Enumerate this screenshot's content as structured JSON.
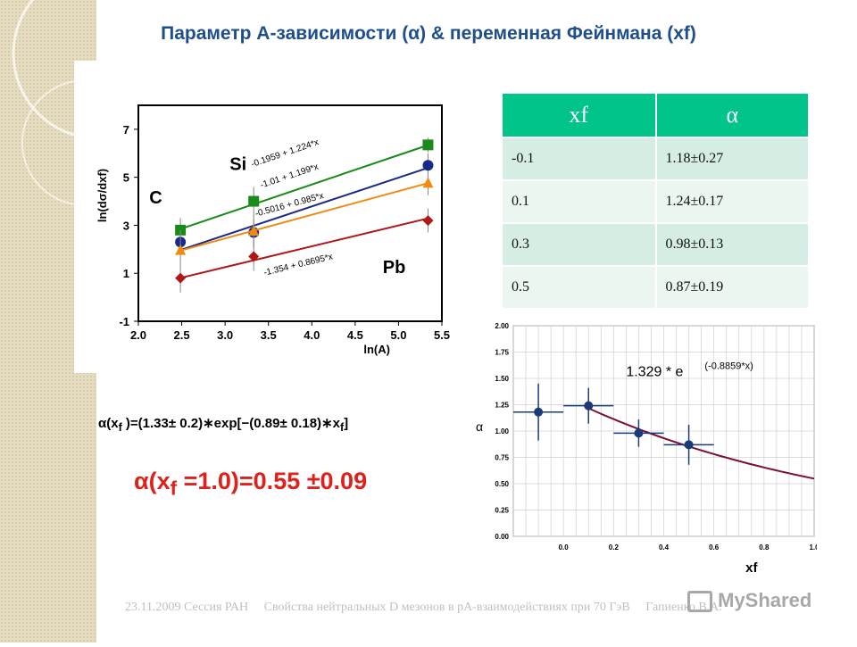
{
  "slide": {
    "title": "Параметр А-зависимости (α) & переменная Фейнмана (xf)"
  },
  "table": {
    "headers": [
      "xf",
      "α"
    ],
    "rows": [
      [
        "-0.1",
        "1.18±0.27"
      ],
      [
        "0.1",
        "1.24±0.17"
      ],
      [
        "0.3",
        "0.98±0.13"
      ],
      [
        "0.5",
        "0.87±0.19"
      ]
    ]
  },
  "formulas": {
    "fit_prefix": "α(x",
    "fit_sub": "f",
    "fit_mid": " )=(1.33± 0.2)∗exp[−(0.89± 0.18)∗x",
    "fit_sub2": "f",
    "fit_end": "]",
    "result_prefix": "α(x",
    "result_sub": "f",
    "result_rest": " =1.0)=0.55 ±0.09"
  },
  "footer": {
    "date": "23.11.2009 Сессия РАН",
    "talk": "Свойства нейтральных D мезонов в pA-взаимодействиях при 70 ГэВ",
    "author": "Гапиенко В.А.",
    "watermark": "MyShared"
  },
  "chart_data": [
    {
      "type": "scatter",
      "xlabel": "ln(A)",
      "ylabel": "ln(dσ/dxf)",
      "xlim": [
        2.0,
        5.5
      ],
      "ylim": [
        -1,
        8
      ],
      "xticks": [
        2.0,
        2.5,
        3.0,
        3.5,
        4.0,
        4.5,
        5.0,
        5.5
      ],
      "yticks": [
        -1,
        1,
        3,
        5,
        7
      ],
      "x": [
        2.485,
        3.33,
        5.34
      ],
      "annotations": [
        "C",
        "Si",
        "Pb"
      ],
      "series": [
        {
          "fit": "-0.1959 + 1.224*x",
          "color": "#1a8a1a",
          "marker": "square",
          "values": [
            2.8,
            4.0,
            6.35
          ],
          "intercept": -0.1959,
          "slope": 1.224
        },
        {
          "fit": "-1.01 + 1.199*x",
          "color": "#1a2a8a",
          "marker": "circle",
          "values": [
            2.3,
            2.7,
            5.5
          ],
          "intercept": -1.01,
          "slope": 1.199
        },
        {
          "fit": "-0.5016 + 0.985*x",
          "color": "#f08a10",
          "marker": "triangle",
          "values": [
            1.95,
            2.75,
            4.75
          ],
          "intercept": -0.5016,
          "slope": 0.985
        },
        {
          "fit": "-1.354 + 0.8695*x",
          "color": "#b01818",
          "marker": "diamond",
          "values": [
            0.8,
            1.7,
            3.2
          ],
          "intercept": -1.354,
          "slope": 0.8695
        }
      ],
      "errors": [
        [
          0.5,
          0.6,
          0.3
        ],
        [
          0.5,
          0.6,
          0.5
        ],
        [
          0.6,
          0.7,
          0.5
        ],
        [
          0.6,
          0.6,
          0.5
        ]
      ]
    },
    {
      "type": "scatter",
      "xlabel": "xf",
      "ylabel": "α",
      "xlim": [
        -0.2,
        1.0
      ],
      "ylim": [
        0.0,
        2.0
      ],
      "xticks": [
        0.0,
        0.2,
        0.4,
        0.6,
        0.8,
        1.0
      ],
      "yticks": [
        0.0,
        0.25,
        0.5,
        0.75,
        1.0,
        1.25,
        1.5,
        1.75,
        2.0
      ],
      "fit_label": "1.329 * e",
      "fit_exponent": "(-0.8859*x)",
      "fit": {
        "a": 1.329,
        "b": -0.8859,
        "x_from": 0.1
      },
      "x": [
        -0.1,
        0.1,
        0.3,
        0.5
      ],
      "values": [
        1.18,
        1.24,
        0.98,
        0.87
      ],
      "yerr": [
        0.27,
        0.17,
        0.13,
        0.19
      ],
      "xerr": [
        0.1,
        0.1,
        0.1,
        0.1
      ],
      "line_color": "#7a1035",
      "marker_color": "#1a3a7a"
    }
  ]
}
